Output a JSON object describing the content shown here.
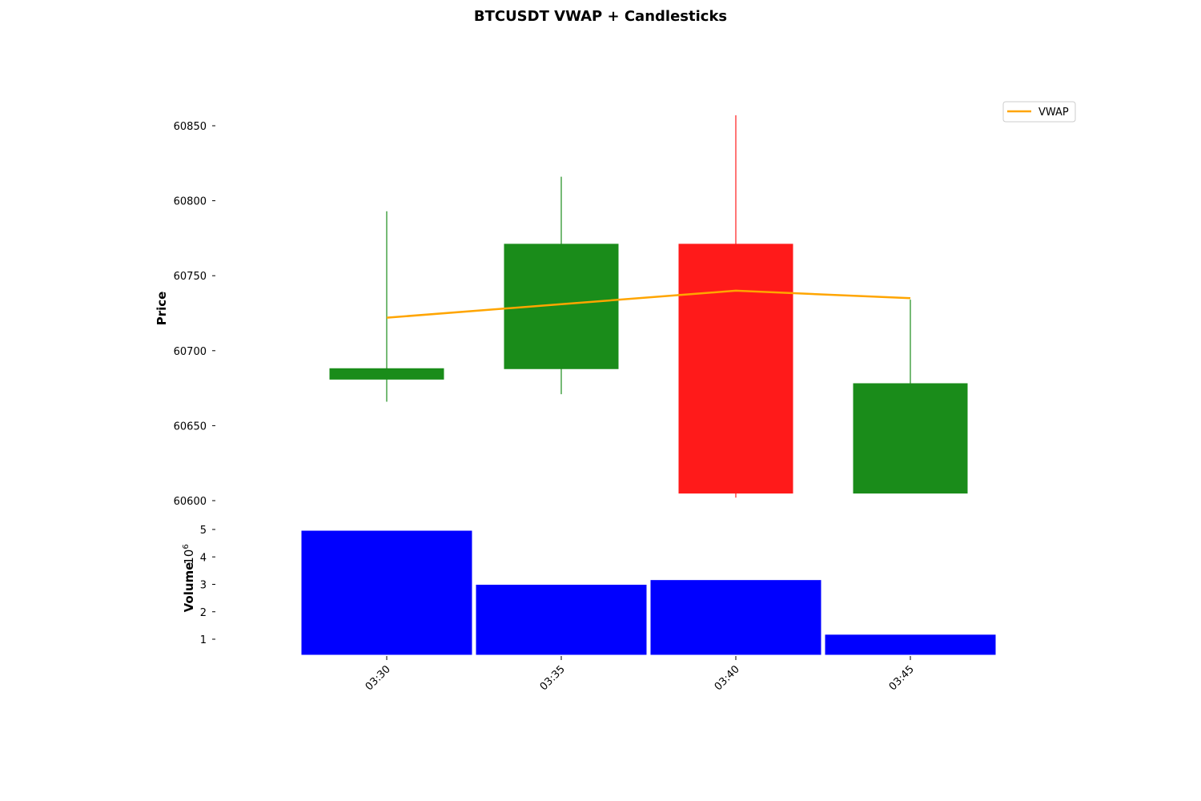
{
  "chart_data": {
    "type": "candlestick",
    "title": "BTCUSDT VWAP + Candlesticks",
    "price_panel": {
      "ylabel": "Price",
      "ylim": [
        60600,
        60865
      ],
      "yticks": [
        60600,
        60650,
        60700,
        60750,
        60800,
        60850
      ],
      "candles": [
        {
          "time": "03:30",
          "open": 60681,
          "high": 60793,
          "low": 60666,
          "close": 60688,
          "color": "#1a8c1a"
        },
        {
          "time": "03:35",
          "open": 60688,
          "high": 60816,
          "low": 60671,
          "close": 60771,
          "color": "#1a8c1a"
        },
        {
          "time": "03:40",
          "open": 60771,
          "high": 60857,
          "low": 60602,
          "close": 60605,
          "color": "#ff1a1a"
        },
        {
          "time": "03:45",
          "open": 60605,
          "high": 60734,
          "low": 60605,
          "close": 60678,
          "color": "#1a8c1a"
        }
      ],
      "vwap": {
        "name": "VWAP",
        "color": "#ffa500",
        "values": [
          60722,
          60731,
          60740,
          60735
        ]
      },
      "legend": {
        "label": "VWAP",
        "position": "top-right"
      }
    },
    "volume_panel": {
      "ylabel": "Volume",
      "exponent_label": "10",
      "exponent_power": "6",
      "ylim": [
        0.4,
        5.0
      ],
      "yticks": [
        1,
        2,
        3,
        4,
        5
      ],
      "color": "#0000ff",
      "values": [
        4.97,
        3.0,
        3.17,
        1.18
      ]
    },
    "x": [
      "03:30",
      "03:35",
      "03:40",
      "03:45"
    ],
    "grid": false
  }
}
